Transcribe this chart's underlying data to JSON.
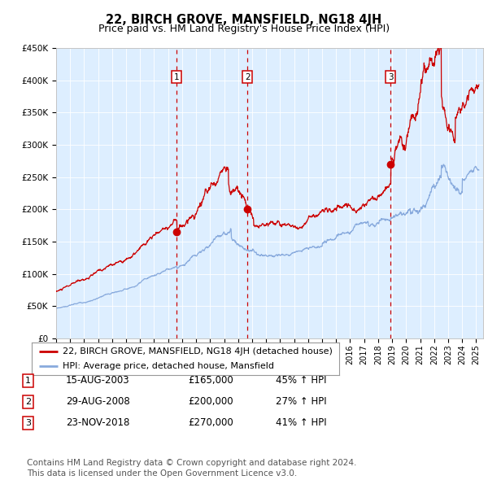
{
  "title": "22, BIRCH GROVE, MANSFIELD, NG18 4JH",
  "subtitle": "Price paid vs. HM Land Registry's House Price Index (HPI)",
  "title_fontsize": 10.5,
  "subtitle_fontsize": 9,
  "background_color": "#ffffff",
  "plot_bg_color": "#ddeeff",
  "ylim": [
    0,
    450000
  ],
  "yticks": [
    0,
    50000,
    100000,
    150000,
    200000,
    250000,
    300000,
    350000,
    400000,
    450000
  ],
  "ytick_labels": [
    "£0",
    "£50K",
    "£100K",
    "£150K",
    "£200K",
    "£250K",
    "£300K",
    "£350K",
    "£400K",
    "£450K"
  ],
  "xmin": 1995.0,
  "xmax": 2025.5,
  "xticks": [
    1995,
    1996,
    1997,
    1998,
    1999,
    2000,
    2001,
    2002,
    2003,
    2004,
    2005,
    2006,
    2007,
    2008,
    2009,
    2010,
    2011,
    2012,
    2013,
    2014,
    2015,
    2016,
    2017,
    2018,
    2019,
    2020,
    2021,
    2022,
    2023,
    2024,
    2025
  ],
  "red_line_color": "#cc0000",
  "blue_line_color": "#88aadd",
  "dashed_vline_color": "#cc0000",
  "purchase_markers": [
    {
      "year": 2003.62,
      "value": 165000,
      "label": "1"
    },
    {
      "year": 2008.66,
      "value": 200000,
      "label": "2"
    },
    {
      "year": 2018.9,
      "value": 270000,
      "label": "3"
    }
  ],
  "numbered_box_color": "#cc0000",
  "legend_line1": "22, BIRCH GROVE, MANSFIELD, NG18 4JH (detached house)",
  "legend_line2": "HPI: Average price, detached house, Mansfield",
  "table_rows": [
    {
      "num": "1",
      "date": "15-AUG-2003",
      "price": "£165,000",
      "hpi": "45% ↑ HPI"
    },
    {
      "num": "2",
      "date": "29-AUG-2008",
      "price": "£200,000",
      "hpi": "27% ↑ HPI"
    },
    {
      "num": "3",
      "date": "23-NOV-2018",
      "price": "£270,000",
      "hpi": "41% ↑ HPI"
    }
  ],
  "footer": "Contains HM Land Registry data © Crown copyright and database right 2024.\nThis data is licensed under the Open Government Licence v3.0.",
  "legend_fontsize": 8,
  "table_fontsize": 8.5,
  "footer_fontsize": 7.5
}
